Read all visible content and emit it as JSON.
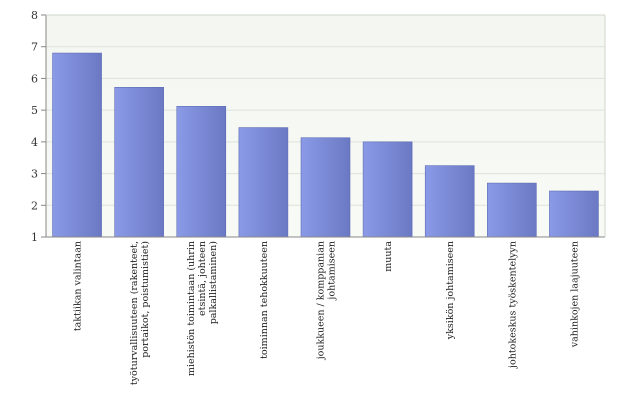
{
  "chart_data": {
    "type": "bar",
    "title": "",
    "xlabel": "",
    "ylabel": "",
    "ylim": [
      1,
      8
    ],
    "yticks": [
      1,
      2,
      3,
      4,
      5,
      6,
      7,
      8
    ],
    "grid": true,
    "categories": [
      [
        "taktiikan valintaan"
      ],
      [
        "työturvallisuuteen (rakenteet,",
        "portaikot, poistumistiet)"
      ],
      [
        "miehistön toimintaan (uhrin",
        "etsintä, johteen",
        "palkallistaminen)"
      ],
      [
        "toiminnan tehokkuuteen"
      ],
      [
        "joukkueen / komppanian",
        "johtamiseen"
      ],
      [
        "muuta"
      ],
      [
        "yksikön johtamiseen"
      ],
      [
        "johtokeskus työskentelyyn"
      ],
      [
        "vahinkojen laajuuteen"
      ]
    ],
    "values": [
      6.8,
      5.72,
      5.12,
      4.45,
      4.13,
      4.0,
      3.25,
      2.7,
      2.45
    ],
    "bar_color": "#7d8ed8",
    "plot_bg": "#f4f7f2"
  }
}
